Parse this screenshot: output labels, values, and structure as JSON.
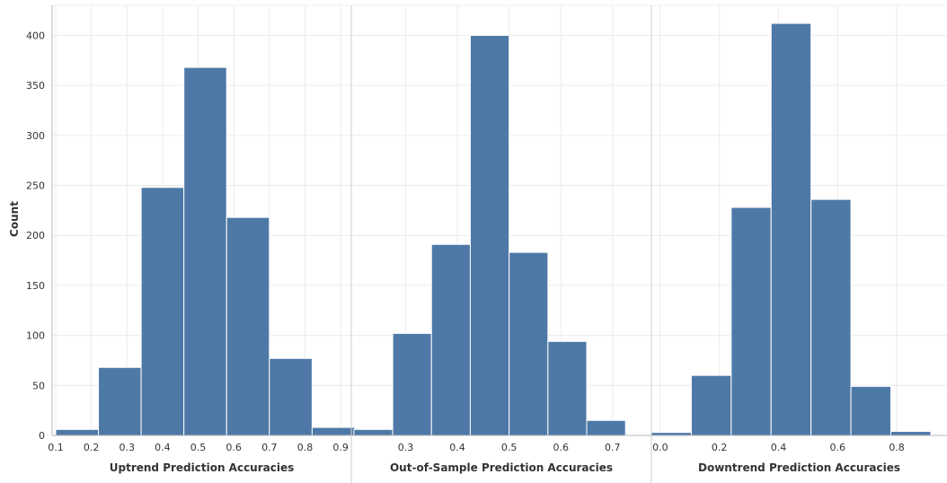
{
  "chart_data": {
    "type": "bar",
    "ylabel": "Count",
    "ylim": [
      0,
      430
    ],
    "yticks": [
      0,
      50,
      100,
      150,
      200,
      250,
      300,
      350,
      400
    ],
    "bar_color": "#4e79a7",
    "panels": [
      {
        "xlabel": "Uptrend Prediction Accuracies",
        "xlim": [
          0.09,
          0.93
        ],
        "xticks": [
          "0.1",
          "0.2",
          "0.3",
          "0.4",
          "0.5",
          "0.6",
          "0.7",
          "0.8",
          "0.9"
        ],
        "bins": [
          {
            "x0": 0.1,
            "x1": 0.22,
            "count": 6
          },
          {
            "x0": 0.22,
            "x1": 0.34,
            "count": 68
          },
          {
            "x0": 0.34,
            "x1": 0.46,
            "count": 248
          },
          {
            "x0": 0.46,
            "x1": 0.58,
            "count": 368
          },
          {
            "x0": 0.58,
            "x1": 0.7,
            "count": 218
          },
          {
            "x0": 0.7,
            "x1": 0.82,
            "count": 77
          },
          {
            "x0": 0.82,
            "x1": 0.94,
            "count": 8
          }
        ]
      },
      {
        "xlabel": "Out-of-Sample Prediction Accuracies",
        "xlim": [
          0.195,
          0.775
        ],
        "xticks": [
          "0.3",
          "0.4",
          "0.5",
          "0.6",
          "0.7"
        ],
        "bins": [
          {
            "x0": 0.2,
            "x1": 0.275,
            "count": 6
          },
          {
            "x0": 0.275,
            "x1": 0.35,
            "count": 102
          },
          {
            "x0": 0.35,
            "x1": 0.425,
            "count": 191
          },
          {
            "x0": 0.425,
            "x1": 0.5,
            "count": 400
          },
          {
            "x0": 0.5,
            "x1": 0.575,
            "count": 183
          },
          {
            "x0": 0.575,
            "x1": 0.65,
            "count": 94
          },
          {
            "x0": 0.65,
            "x1": 0.725,
            "count": 15
          }
        ]
      },
      {
        "xlabel": "Downtrend Prediction Accuracies",
        "xlim": [
          -0.03,
          0.97
        ],
        "xticks": [
          "0.0",
          "0.2",
          "0.4",
          "0.6",
          "0.8",
          "1.0"
        ],
        "bins": [
          {
            "x0": -0.03,
            "x1": 0.105,
            "count": 3
          },
          {
            "x0": 0.105,
            "x1": 0.24,
            "count": 60
          },
          {
            "x0": 0.24,
            "x1": 0.375,
            "count": 228
          },
          {
            "x0": 0.375,
            "x1": 0.51,
            "count": 412
          },
          {
            "x0": 0.51,
            "x1": 0.645,
            "count": 236
          },
          {
            "x0": 0.645,
            "x1": 0.78,
            "count": 49
          },
          {
            "x0": 0.78,
            "x1": 0.915,
            "count": 4
          }
        ]
      }
    ]
  }
}
